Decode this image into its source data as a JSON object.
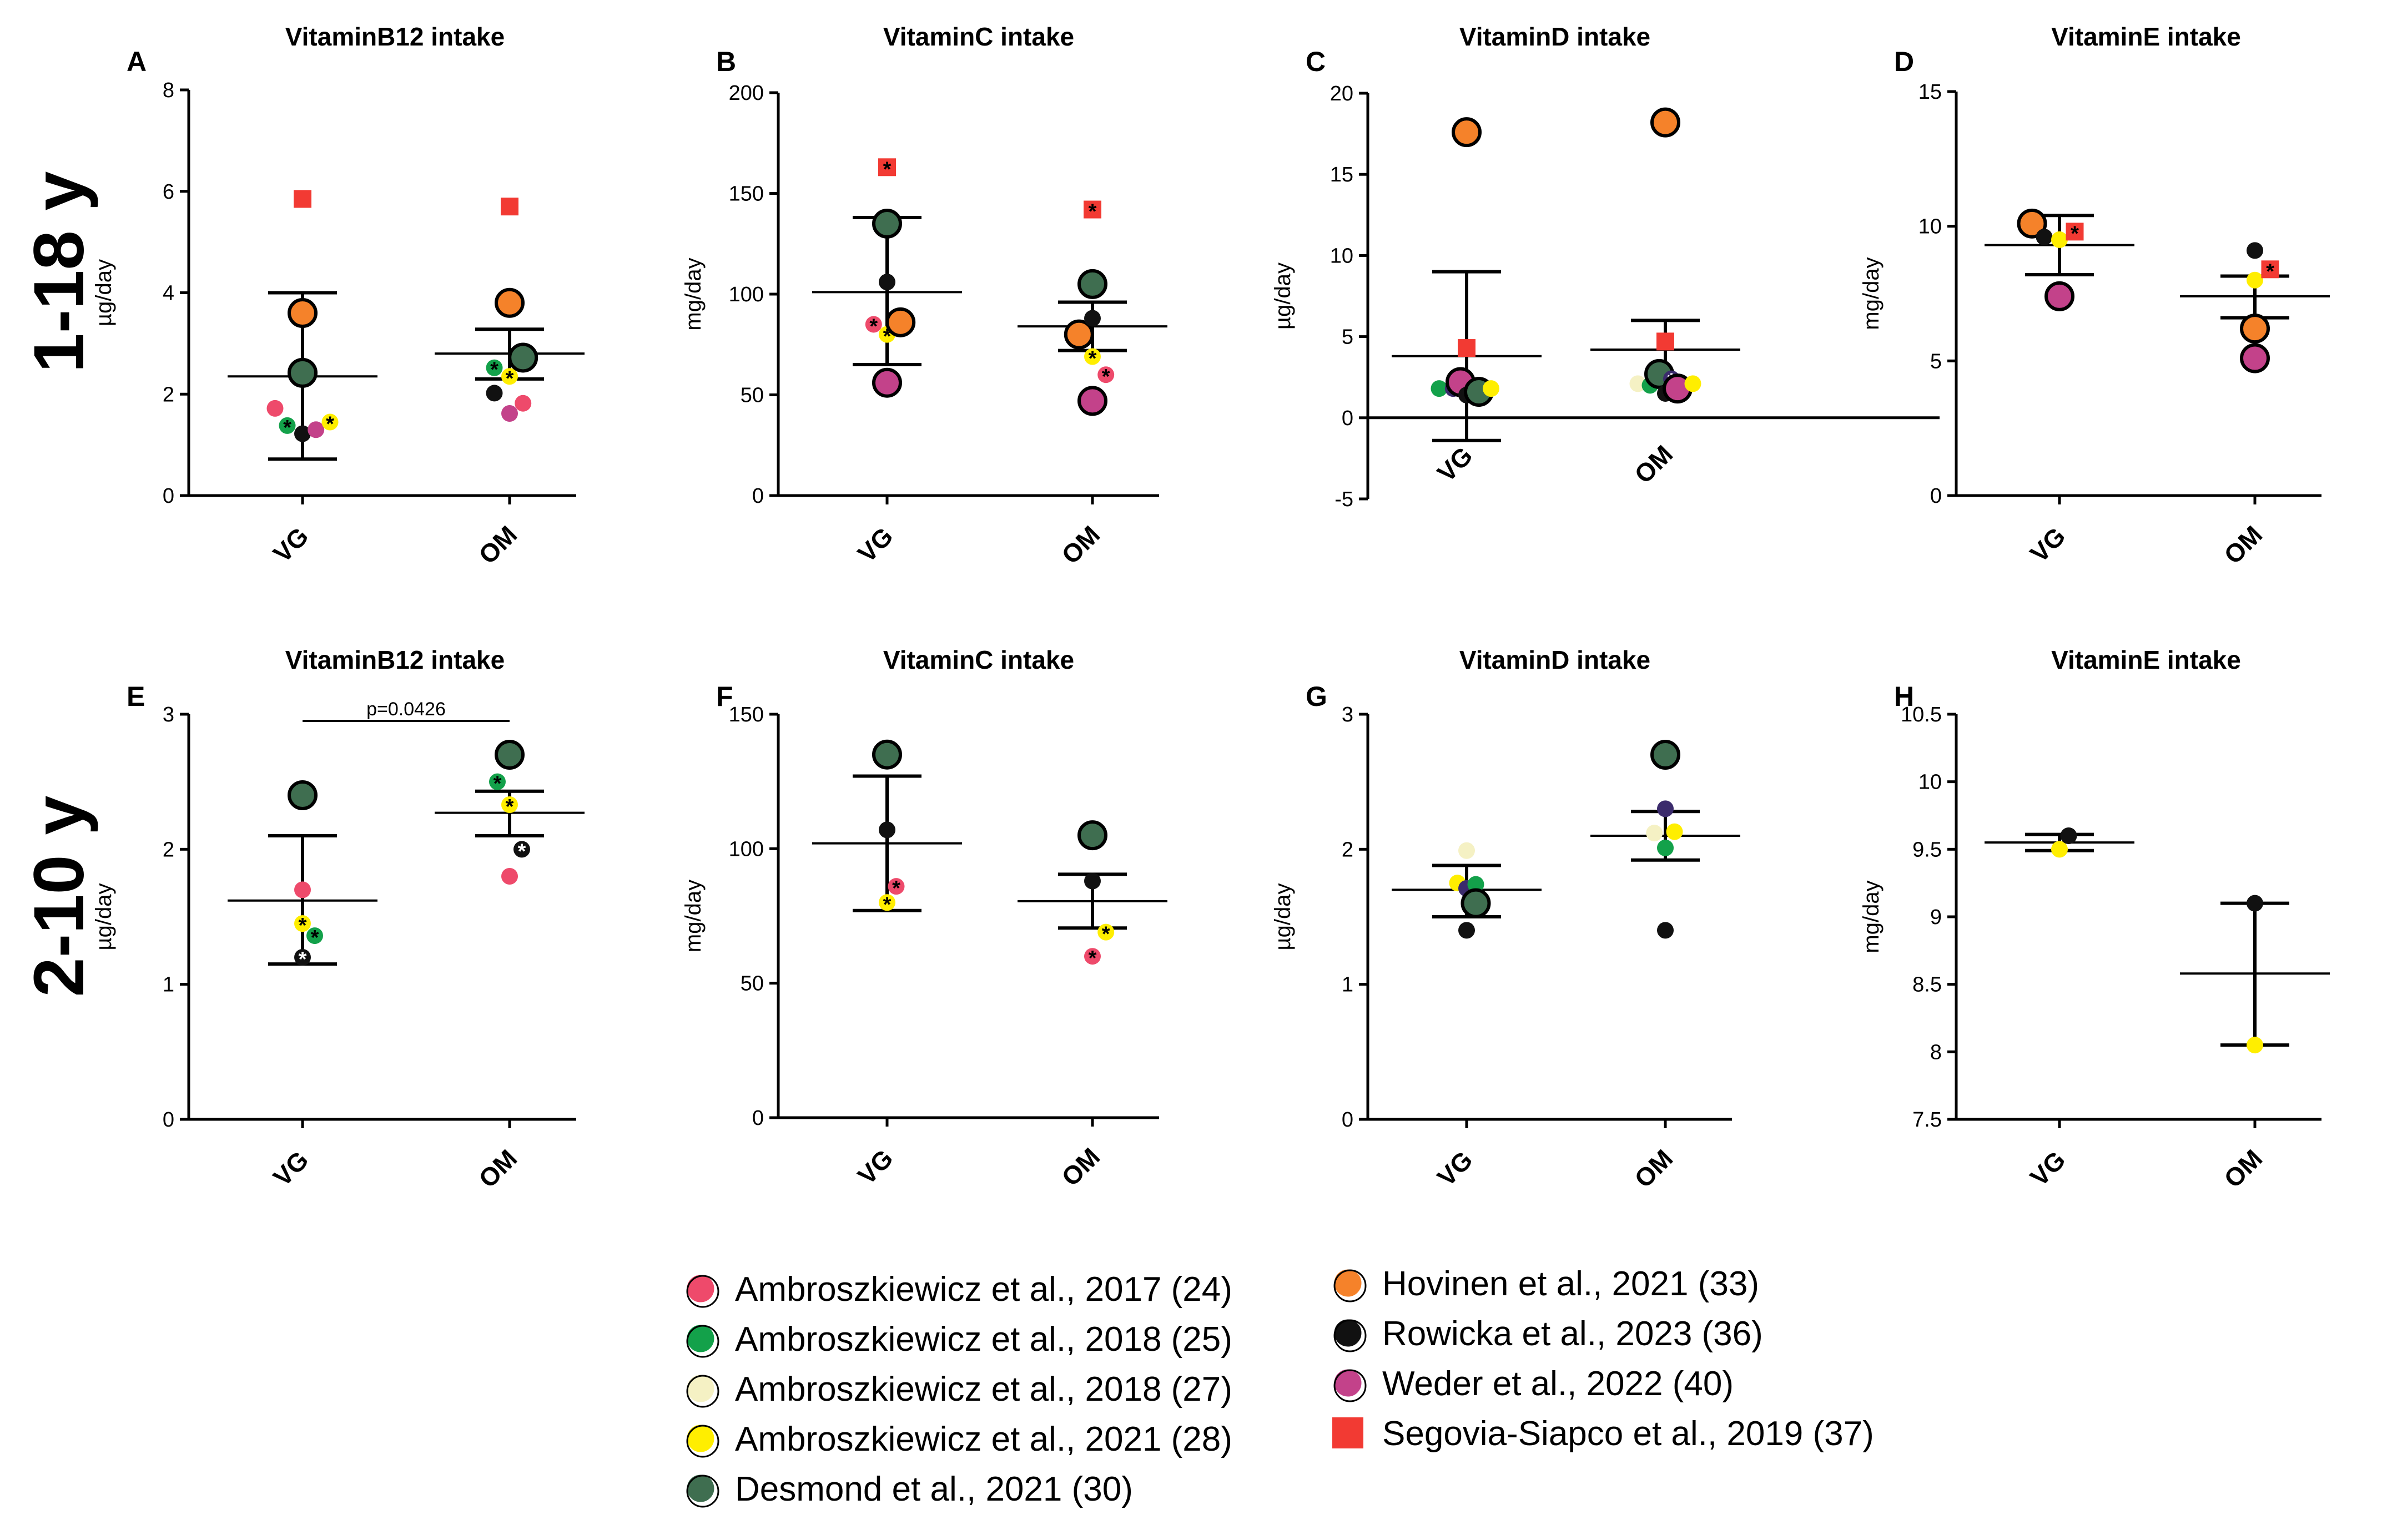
{
  "row_labels": [
    "1-18 y",
    "2-10 y"
  ],
  "colors": {
    "Ambro2017": "#ee4a6b",
    "Ambro2018_25": "#13a14a",
    "Ambro2018_27": "#f5f1c4",
    "Ambro2021": "#ffee00",
    "Desmond": "#3f6e50",
    "Hovinen": "#f5822a",
    "Rowicka": "#111111",
    "Weder": "#c3428a",
    "Segovia": "#f23a33",
    "Purple": "#3b2b6c"
  },
  "legend": [
    {
      "key": "Ambro2017",
      "label": "Ambroszkiewicz et al., 2017 (24)",
      "marker": "circle"
    },
    {
      "key": "Ambro2018_25",
      "label": "Ambroszkiewicz et al., 2018 (25)",
      "marker": "circle"
    },
    {
      "key": "Ambro2018_27",
      "label": "Ambroszkiewicz et al., 2018 (27)",
      "marker": "circle"
    },
    {
      "key": "Ambro2021",
      "label": "Ambroszkiewicz et al., 2021 (28)",
      "marker": "circle"
    },
    {
      "key": "Desmond",
      "label": "Desmond et al., 2021 (30)",
      "marker": "circle"
    },
    {
      "key": "Hovinen",
      "label": "Hovinen et al., 2021 (33)",
      "marker": "circle"
    },
    {
      "key": "Rowicka",
      "label": "Rowicka et al., 2023 (36)",
      "marker": "circle"
    },
    {
      "key": "Weder",
      "label": "Weder et al., 2022 (40)",
      "marker": "circle"
    },
    {
      "key": "Segovia",
      "label": "Segovia-Siapco et al., 2019 (37)",
      "marker": "square"
    }
  ],
  "chart_data": [
    {
      "id": "A",
      "type": "scatter",
      "title": "VitaminB12 intake",
      "ylabel": "µg/day",
      "ylim": [
        0,
        8
      ],
      "yticks": [
        0,
        2,
        4,
        6,
        8
      ],
      "categories": [
        "VG",
        "OM"
      ],
      "zero_line": false,
      "summary": [
        {
          "mean": 2.35,
          "lo": 0.72,
          "hi": 4.0
        },
        {
          "mean": 2.8,
          "lo": 2.3,
          "hi": 3.28
        }
      ],
      "points": [
        {
          "g": 0,
          "dx": -0.45,
          "y": 1.72,
          "s": "Ambro2017"
        },
        {
          "g": 0,
          "dx": -0.25,
          "y": 1.38,
          "s": "Ambro2018_25",
          "star": true
        },
        {
          "g": 0,
          "dx": 0.0,
          "y": 1.22,
          "s": "Rowicka"
        },
        {
          "g": 0,
          "dx": 0.0,
          "y": 2.42,
          "s": "Desmond",
          "large": true
        },
        {
          "g": 0,
          "dx": 0.0,
          "y": 3.6,
          "s": "Hovinen",
          "large": true
        },
        {
          "g": 0,
          "dx": 0.0,
          "y": 5.85,
          "s": "Segovia",
          "marker": "square"
        },
        {
          "g": 0,
          "dx": 0.22,
          "y": 1.3,
          "s": "Weder"
        },
        {
          "g": 0,
          "dx": 0.45,
          "y": 1.45,
          "s": "Ambro2021",
          "star": true
        },
        {
          "g": 1,
          "dx": -0.25,
          "y": 2.52,
          "s": "Ambro2018_25",
          "star": true
        },
        {
          "g": 1,
          "dx": -0.25,
          "y": 2.02,
          "s": "Rowicka"
        },
        {
          "g": 1,
          "dx": 0.0,
          "y": 2.35,
          "s": "Ambro2021",
          "star": true
        },
        {
          "g": 1,
          "dx": 0.0,
          "y": 3.8,
          "s": "Hovinen",
          "large": true
        },
        {
          "g": 1,
          "dx": 0.0,
          "y": 5.7,
          "s": "Segovia",
          "marker": "square"
        },
        {
          "g": 1,
          "dx": 0.0,
          "y": 1.62,
          "s": "Weder"
        },
        {
          "g": 1,
          "dx": 0.22,
          "y": 2.72,
          "s": "Desmond",
          "large": true
        },
        {
          "g": 1,
          "dx": 0.22,
          "y": 1.82,
          "s": "Ambro2017"
        }
      ]
    },
    {
      "id": "B",
      "type": "scatter",
      "title": "VitaminC intake",
      "ylabel": "mg/day",
      "ylim": [
        0,
        200
      ],
      "yticks": [
        0,
        50,
        100,
        150,
        200
      ],
      "categories": [
        "VG",
        "OM"
      ],
      "zero_line": false,
      "summary": [
        {
          "mean": 101,
          "lo": 65,
          "hi": 138
        },
        {
          "mean": 84,
          "lo": 72,
          "hi": 96
        }
      ],
      "points": [
        {
          "g": 0,
          "dx": -0.22,
          "y": 85,
          "s": "Ambro2017",
          "star": true
        },
        {
          "g": 0,
          "dx": 0.0,
          "y": 135,
          "s": "Desmond",
          "large": true
        },
        {
          "g": 0,
          "dx": 0.0,
          "y": 106,
          "s": "Rowicka"
        },
        {
          "g": 0,
          "dx": 0.0,
          "y": 80,
          "s": "Ambro2021",
          "star": true
        },
        {
          "g": 0,
          "dx": 0.0,
          "y": 56,
          "s": "Weder",
          "large": true
        },
        {
          "g": 0,
          "dx": 0.0,
          "y": 163,
          "s": "Segovia",
          "marker": "square",
          "star": true
        },
        {
          "g": 0,
          "dx": 0.22,
          "y": 86,
          "s": "Hovinen",
          "large": true
        },
        {
          "g": 1,
          "dx": -0.22,
          "y": 80,
          "s": "Hovinen",
          "large": true
        },
        {
          "g": 1,
          "dx": 0.0,
          "y": 105,
          "s": "Desmond",
          "large": true
        },
        {
          "g": 1,
          "dx": 0.0,
          "y": 88,
          "s": "Rowicka"
        },
        {
          "g": 1,
          "dx": 0.0,
          "y": 69,
          "s": "Ambro2021",
          "star": true
        },
        {
          "g": 1,
          "dx": 0.0,
          "y": 47,
          "s": "Weder",
          "large": true
        },
        {
          "g": 1,
          "dx": 0.0,
          "y": 142,
          "s": "Segovia",
          "marker": "square",
          "star": true
        },
        {
          "g": 1,
          "dx": 0.22,
          "y": 60,
          "s": "Ambro2017",
          "star": true
        }
      ]
    },
    {
      "id": "C",
      "type": "scatter",
      "title": "VitaminD intake",
      "ylabel": "µg/day",
      "ylim": [
        -5,
        20
      ],
      "yticks": [
        -5,
        0,
        5,
        10,
        15,
        20
      ],
      "categories": [
        "VG",
        "OM"
      ],
      "zero_line": true,
      "summary": [
        {
          "mean": 3.8,
          "lo": -1.4,
          "hi": 9.0
        },
        {
          "mean": 4.2,
          "lo": 2.0,
          "hi": 6.0
        }
      ],
      "points": [
        {
          "g": 0,
          "dx": -0.45,
          "y": 1.8,
          "s": "Ambro2018_25"
        },
        {
          "g": 0,
          "dx": -0.22,
          "y": 1.8,
          "s": "Purple",
          "star": true
        },
        {
          "g": 0,
          "dx": -0.1,
          "y": 2.2,
          "s": "Weder",
          "large": true
        },
        {
          "g": 0,
          "dx": 0.0,
          "y": 1.4,
          "s": "Rowicka"
        },
        {
          "g": 0,
          "dx": 0.0,
          "y": 17.6,
          "s": "Hovinen",
          "large": true
        },
        {
          "g": 0,
          "dx": 0.0,
          "y": 4.3,
          "s": "Segovia",
          "marker": "square"
        },
        {
          "g": 0,
          "dx": 0.12,
          "y": 1.8,
          "s": "Ambro2018_27"
        },
        {
          "g": 0,
          "dx": 0.2,
          "y": 1.6,
          "s": "Desmond",
          "large": true
        },
        {
          "g": 0,
          "dx": 0.4,
          "y": 1.8,
          "s": "Ambro2021"
        },
        {
          "g": 1,
          "dx": -0.45,
          "y": 2.1,
          "s": "Ambro2018_27"
        },
        {
          "g": 1,
          "dx": -0.25,
          "y": 2.0,
          "s": "Ambro2018_25"
        },
        {
          "g": 1,
          "dx": -0.1,
          "y": 2.7,
          "s": "Desmond",
          "large": true
        },
        {
          "g": 1,
          "dx": 0.0,
          "y": 1.5,
          "s": "Rowicka"
        },
        {
          "g": 1,
          "dx": 0.0,
          "y": 18.2,
          "s": "Hovinen",
          "large": true
        },
        {
          "g": 1,
          "dx": 0.0,
          "y": 4.7,
          "s": "Segovia",
          "marker": "square"
        },
        {
          "g": 1,
          "dx": 0.1,
          "y": 2.4,
          "s": "Purple",
          "star": true
        },
        {
          "g": 1,
          "dx": 0.2,
          "y": 1.8,
          "s": "Weder",
          "large": true
        },
        {
          "g": 1,
          "dx": 0.45,
          "y": 2.1,
          "s": "Ambro2021"
        }
      ]
    },
    {
      "id": "D",
      "type": "scatter",
      "title": "VitaminE intake",
      "ylabel": "mg/day",
      "ylim": [
        0,
        15
      ],
      "yticks": [
        0,
        5,
        10,
        15
      ],
      "categories": [
        "VG",
        "OM"
      ],
      "zero_line": false,
      "summary": [
        {
          "mean": 9.3,
          "lo": 8.2,
          "hi": 10.4
        },
        {
          "mean": 7.4,
          "lo": 6.6,
          "hi": 8.15
        }
      ],
      "points": [
        {
          "g": 0,
          "dx": -0.45,
          "y": 10.1,
          "s": "Hovinen",
          "large": true
        },
        {
          "g": 0,
          "dx": -0.25,
          "y": 9.6,
          "s": "Rowicka"
        },
        {
          "g": 0,
          "dx": 0.0,
          "y": 9.5,
          "s": "Ambro2021"
        },
        {
          "g": 0,
          "dx": 0.0,
          "y": 7.4,
          "s": "Weder",
          "large": true
        },
        {
          "g": 0,
          "dx": 0.25,
          "y": 9.8,
          "s": "Segovia",
          "marker": "square",
          "star": true
        },
        {
          "g": 1,
          "dx": 0.0,
          "y": 9.1,
          "s": "Rowicka"
        },
        {
          "g": 1,
          "dx": 0.0,
          "y": 8.0,
          "s": "Ambro2021"
        },
        {
          "g": 1,
          "dx": 0.0,
          "y": 6.2,
          "s": "Hovinen",
          "large": true
        },
        {
          "g": 1,
          "dx": 0.0,
          "y": 5.1,
          "s": "Weder",
          "large": true
        },
        {
          "g": 1,
          "dx": 0.25,
          "y": 8.4,
          "s": "Segovia",
          "marker": "square",
          "star": true
        }
      ]
    },
    {
      "id": "E",
      "type": "scatter",
      "title": "VitaminB12 intake",
      "ylabel": "µg/day",
      "ylim": [
        0,
        3
      ],
      "yticks": [
        0,
        1,
        2,
        3
      ],
      "categories": [
        "VG",
        "OM"
      ],
      "zero_line": false,
      "pvalue": "p=0.0426",
      "summary": [
        {
          "mean": 1.62,
          "lo": 1.15,
          "hi": 2.1
        },
        {
          "mean": 2.27,
          "lo": 2.1,
          "hi": 2.43
        }
      ],
      "points": [
        {
          "g": 0,
          "dx": 0.0,
          "y": 2.4,
          "s": "Desmond",
          "large": true
        },
        {
          "g": 0,
          "dx": 0.0,
          "y": 1.7,
          "s": "Ambro2017"
        },
        {
          "g": 0,
          "dx": 0.0,
          "y": 1.45,
          "s": "Ambro2021",
          "star": true
        },
        {
          "g": 0,
          "dx": 0.0,
          "y": 1.2,
          "s": "Rowicka",
          "star": true
        },
        {
          "g": 0,
          "dx": 0.2,
          "y": 1.36,
          "s": "Ambro2018_25",
          "star": true
        },
        {
          "g": 1,
          "dx": -0.2,
          "y": 2.5,
          "s": "Ambro2018_25",
          "star": true
        },
        {
          "g": 1,
          "dx": 0.0,
          "y": 2.7,
          "s": "Desmond",
          "large": true
        },
        {
          "g": 1,
          "dx": 0.0,
          "y": 2.33,
          "s": "Ambro2021",
          "star": true
        },
        {
          "g": 1,
          "dx": 0.0,
          "y": 1.8,
          "s": "Ambro2017"
        },
        {
          "g": 1,
          "dx": 0.2,
          "y": 2.0,
          "s": "Rowicka",
          "star": true
        }
      ]
    },
    {
      "id": "F",
      "type": "scatter",
      "title": "VitaminC intake",
      "ylabel": "mg/day",
      "ylim": [
        0,
        150
      ],
      "yticks": [
        0,
        50,
        100,
        150
      ],
      "categories": [
        "VG",
        "OM"
      ],
      "zero_line": false,
      "summary": [
        {
          "mean": 102,
          "lo": 77,
          "hi": 127
        },
        {
          "mean": 80.5,
          "lo": 70.5,
          "hi": 90.5
        }
      ],
      "points": [
        {
          "g": 0,
          "dx": 0.0,
          "y": 135,
          "s": "Desmond",
          "large": true
        },
        {
          "g": 0,
          "dx": 0.0,
          "y": 107,
          "s": "Rowicka"
        },
        {
          "g": 0,
          "dx": 0.0,
          "y": 80,
          "s": "Ambro2021",
          "star": true
        },
        {
          "g": 0,
          "dx": 0.15,
          "y": 86,
          "s": "Ambro2017",
          "star": true
        },
        {
          "g": 1,
          "dx": 0.0,
          "y": 105,
          "s": "Desmond",
          "large": true
        },
        {
          "g": 1,
          "dx": 0.0,
          "y": 88,
          "s": "Rowicka"
        },
        {
          "g": 1,
          "dx": 0.0,
          "y": 60,
          "s": "Ambro2017",
          "star": true
        },
        {
          "g": 1,
          "dx": 0.22,
          "y": 69,
          "s": "Ambro2021",
          "star": true
        }
      ]
    },
    {
      "id": "G",
      "type": "scatter",
      "title": "VitaminD intake",
      "ylabel": "µg/day",
      "ylim": [
        0,
        3
      ],
      "yticks": [
        0,
        1,
        2,
        3
      ],
      "categories": [
        "VG",
        "OM"
      ],
      "zero_line": false,
      "summary": [
        {
          "mean": 1.7,
          "lo": 1.5,
          "hi": 1.88
        },
        {
          "mean": 2.1,
          "lo": 1.92,
          "hi": 2.28
        }
      ],
      "points": [
        {
          "g": 0,
          "dx": -0.15,
          "y": 1.75,
          "s": "Ambro2021"
        },
        {
          "g": 0,
          "dx": 0.0,
          "y": 1.99,
          "s": "Ambro2018_27"
        },
        {
          "g": 0,
          "dx": 0.0,
          "y": 1.71,
          "s": "Purple"
        },
        {
          "g": 0,
          "dx": 0.0,
          "y": 1.4,
          "s": "Rowicka"
        },
        {
          "g": 0,
          "dx": 0.15,
          "y": 1.74,
          "s": "Ambro2018_25"
        },
        {
          "g": 0,
          "dx": 0.15,
          "y": 1.6,
          "s": "Desmond",
          "large": true
        },
        {
          "g": 1,
          "dx": 0.0,
          "y": 2.7,
          "s": "Desmond",
          "large": true
        },
        {
          "g": 1,
          "dx": 0.0,
          "y": 2.3,
          "s": "Purple"
        },
        {
          "g": 1,
          "dx": -0.18,
          "y": 2.12,
          "s": "Ambro2018_27"
        },
        {
          "g": 1,
          "dx": 0.0,
          "y": 2.01,
          "s": "Ambro2018_25"
        },
        {
          "g": 1,
          "dx": 0.15,
          "y": 2.13,
          "s": "Ambro2021"
        },
        {
          "g": 1,
          "dx": 0.0,
          "y": 1.4,
          "s": "Rowicka"
        }
      ]
    },
    {
      "id": "H",
      "type": "scatter",
      "title": "VitaminE intake",
      "ylabel": "mg/day",
      "ylim": [
        7.5,
        10.5
      ],
      "yticks": [
        7.5,
        8.0,
        8.5,
        9.0,
        9.5,
        10.0,
        10.5
      ],
      "categories": [
        "VG",
        "OM"
      ],
      "zero_line": false,
      "summary": [
        {
          "mean": 9.55,
          "lo": 9.49,
          "hi": 9.61
        },
        {
          "mean": 8.58,
          "lo": 8.05,
          "hi": 9.1
        }
      ],
      "points": [
        {
          "g": 0,
          "dx": 0.0,
          "y": 9.5,
          "s": "Ambro2021"
        },
        {
          "g": 0,
          "dx": 0.15,
          "y": 9.6,
          "s": "Rowicka"
        },
        {
          "g": 1,
          "dx": 0.0,
          "y": 9.1,
          "s": "Rowicka"
        },
        {
          "g": 1,
          "dx": 0.0,
          "y": 8.05,
          "s": "Ambro2021"
        }
      ]
    }
  ]
}
